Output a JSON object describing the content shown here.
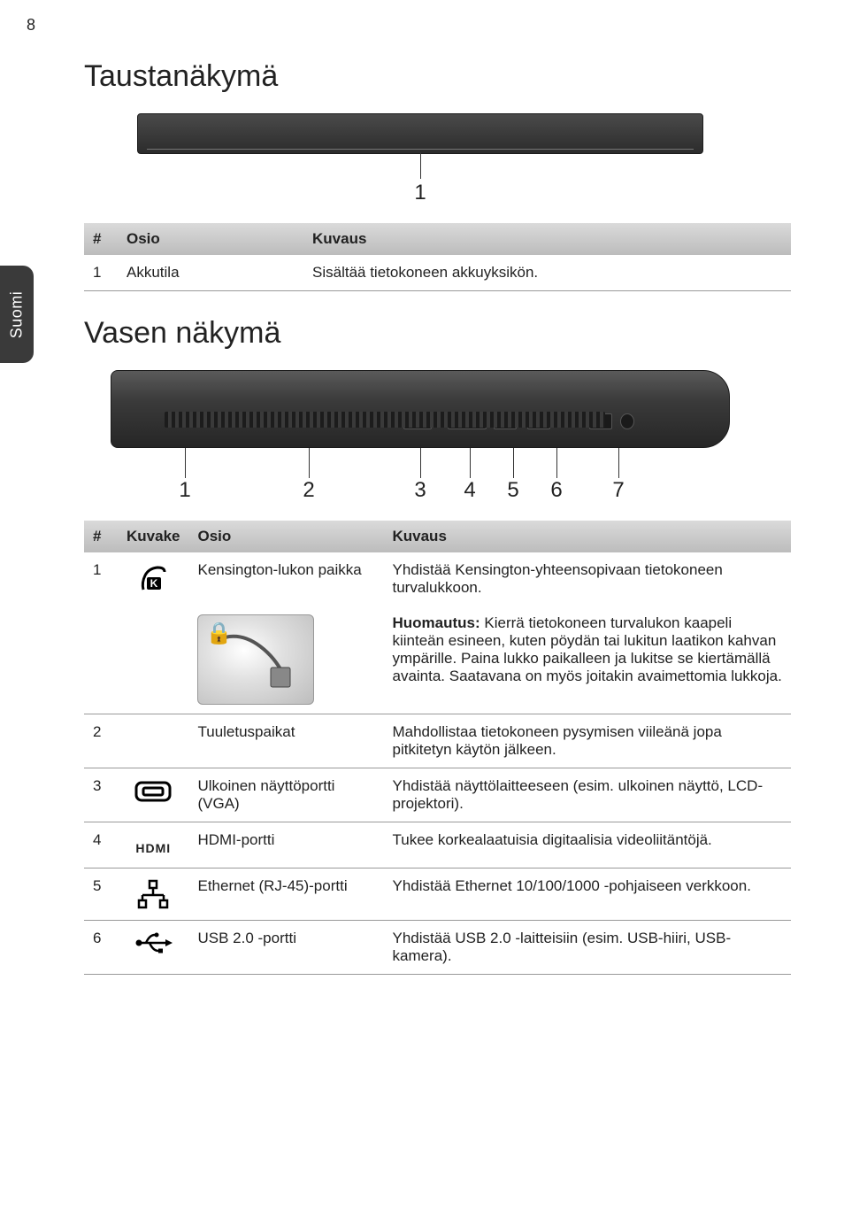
{
  "page_number": "8",
  "language_tab": "Suomi",
  "section_rear": {
    "title": "Taustanäkymä",
    "callouts": [
      "1"
    ],
    "table": {
      "headers": {
        "hash": "#",
        "osio": "Osio",
        "kuvaus": "Kuvaus"
      },
      "rows": [
        {
          "num": "1",
          "osio": "Akkutila",
          "kuvaus": "Sisältää tietokoneen akkuyksikön."
        }
      ]
    }
  },
  "section_left": {
    "title": "Vasen näkymä",
    "callouts": [
      "1",
      "2",
      "3",
      "4",
      "5",
      "6",
      "7"
    ],
    "callout_positions_pct": [
      12,
      32,
      50,
      58,
      65,
      72,
      82
    ],
    "table": {
      "headers": {
        "hash": "#",
        "kuvake": "Kuvake",
        "osio": "Osio",
        "kuvaus": "Kuvaus"
      },
      "rows": [
        {
          "num": "1",
          "icon_name": "kensington-lock-icon",
          "osio": "Kensington-lukon paikka",
          "kuvaus": "Yhdistää Kensington-yhteensopivaan tietokoneen turvalukkoon.",
          "note_label": "Huomautus:",
          "note_body": " Kierrä tietokoneen turvalukon kaapeli kiinteän esineen, kuten pöydän tai lukitun laatikon kahvan ympärille. Paina lukko paikalleen ja lukitse se kiertämällä avainta. Saatavana on myös joitakin avaimettomia lukkoja."
        },
        {
          "num": "2",
          "icon_name": "",
          "osio": "Tuuletuspaikat",
          "kuvaus": "Mahdollistaa tietokoneen pysymisen viileänä jopa pitkitetyn käytön jälkeen."
        },
        {
          "num": "3",
          "icon_name": "vga-icon",
          "osio": "Ulkoinen näyttöportti (VGA)",
          "kuvaus": "Yhdistää näyttölaitteeseen (esim. ulkoinen näyttö, LCD-projektori)."
        },
        {
          "num": "4",
          "icon_name": "hdmi-icon",
          "osio": "HDMI-portti",
          "kuvaus": "Tukee korkealaatuisia digitaalisia videoliitäntöjä."
        },
        {
          "num": "5",
          "icon_name": "ethernet-icon",
          "osio": "Ethernet (RJ-45)-portti",
          "kuvaus": "Yhdistää Ethernet 10/100/1000 -pohjaiseen verkkoon."
        },
        {
          "num": "6",
          "icon_name": "usb-icon",
          "osio": "USB 2.0 -portti",
          "kuvaus": "Yhdistää USB 2.0 -laitteisiin (esim. USB-hiiri, USB-kamera)."
        }
      ]
    }
  }
}
